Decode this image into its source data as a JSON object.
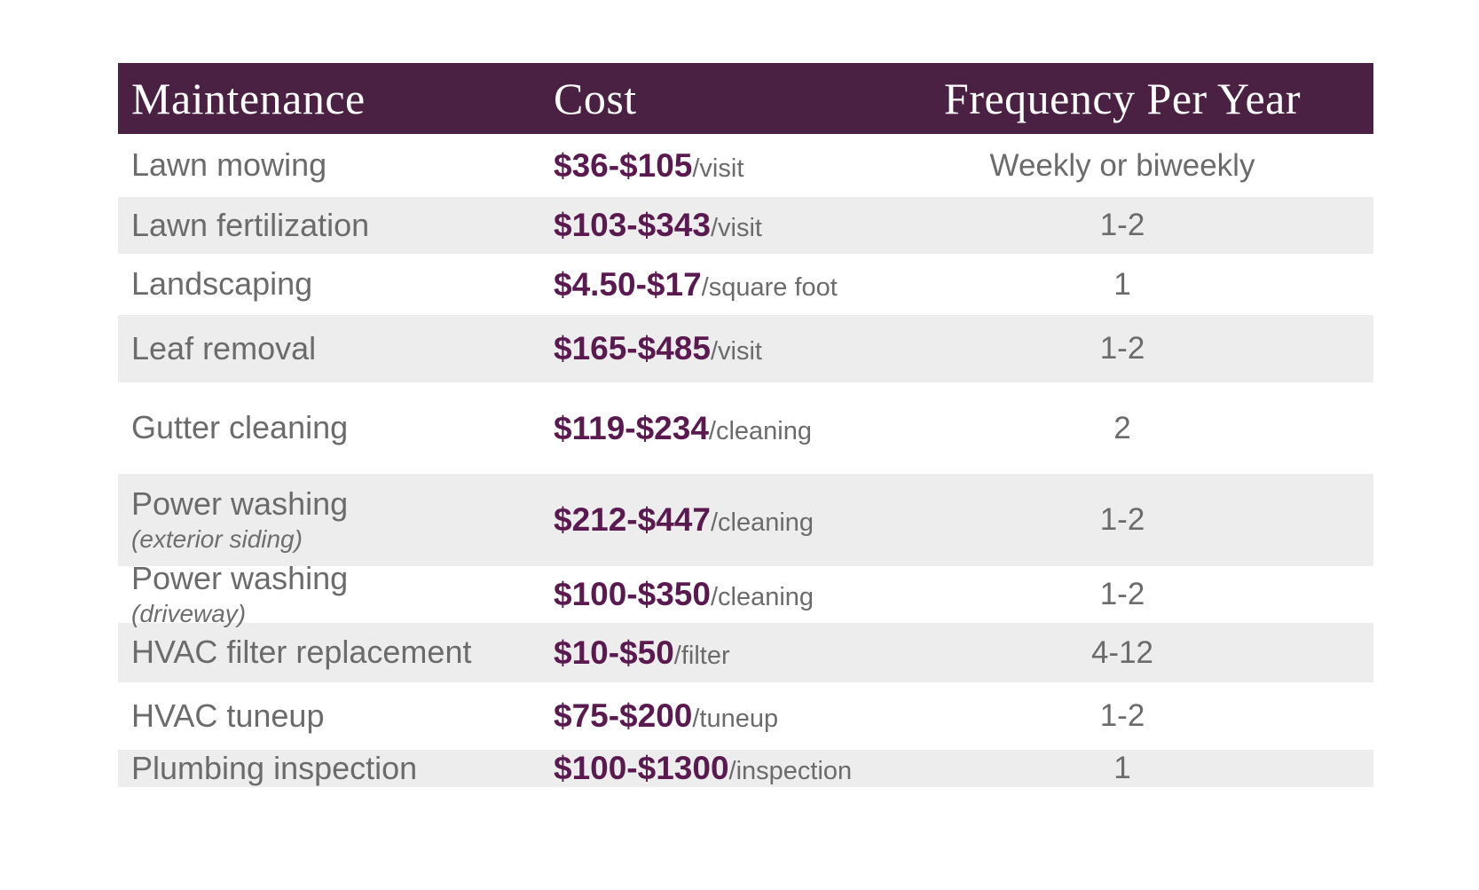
{
  "colors": {
    "header_bg": "#4a2142",
    "header_text": "#ffffff",
    "cost_value_purple": "#5a1a50",
    "body_text_gray": "#6b6b6b",
    "alt_row_bg": "#ededed",
    "page_bg": "#ffffff"
  },
  "chart_data": {
    "type": "table",
    "title": "",
    "columns": [
      "Maintenance",
      "Cost",
      "Frequency Per Year"
    ],
    "rows": [
      {
        "maintenance": "Lawn mowing",
        "sub": "",
        "cost_value": "$36-$105",
        "cost_unit": "/visit",
        "frequency": "Weekly or biweekly"
      },
      {
        "maintenance": "Lawn fertilization",
        "sub": "",
        "cost_value": "$103-$343",
        "cost_unit": "/visit",
        "frequency": "1-2"
      },
      {
        "maintenance": "Landscaping",
        "sub": "",
        "cost_value": "$4.50-$17",
        "cost_unit": "/square foot",
        "frequency": "1"
      },
      {
        "maintenance": "Leaf removal",
        "sub": "",
        "cost_value": "$165-$485",
        "cost_unit": "/visit",
        "frequency": "1-2"
      },
      {
        "maintenance": "Gutter cleaning",
        "sub": "",
        "cost_value": "$119-$234",
        "cost_unit": "/cleaning",
        "frequency": "2"
      },
      {
        "maintenance": "Power washing",
        "sub": "(exterior siding)",
        "cost_value": "$212-$447",
        "cost_unit": "/cleaning",
        "frequency": "1-2"
      },
      {
        "maintenance": "Power washing",
        "sub": "(driveway)",
        "cost_value": "$100-$350",
        "cost_unit": "/cleaning",
        "frequency": "1-2"
      },
      {
        "maintenance": "HVAC filter replacement",
        "sub": "",
        "cost_value": "$10-$50",
        "cost_unit": "/filter",
        "frequency": "4-12"
      },
      {
        "maintenance": "HVAC tuneup",
        "sub": "",
        "cost_value": "$75-$200",
        "cost_unit": "/tuneup",
        "frequency": "1-2"
      },
      {
        "maintenance": "Plumbing inspection",
        "sub": "",
        "cost_value": "$100-$1300",
        "cost_unit": "/inspection",
        "frequency": "1"
      }
    ]
  }
}
